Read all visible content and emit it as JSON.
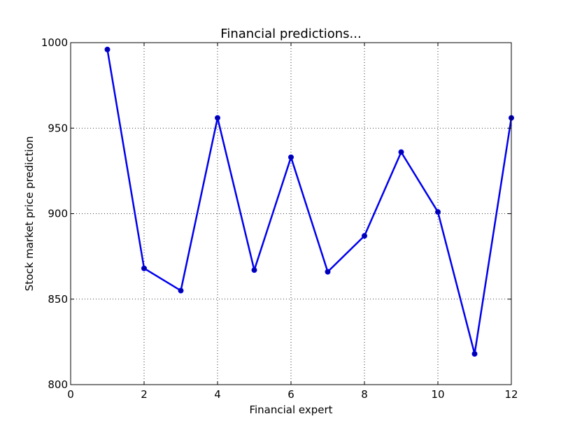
{
  "chart_data": {
    "type": "line",
    "title": "Financial predictions...",
    "xlabel": "Financial expert",
    "ylabel": "Stock market price prediction",
    "xlim": [
      0,
      12
    ],
    "ylim": [
      800,
      1000
    ],
    "x_ticks": [
      0,
      2,
      4,
      6,
      8,
      10,
      12
    ],
    "y_ticks": [
      800,
      850,
      900,
      950,
      1000
    ],
    "grid": true,
    "series": [
      {
        "x": [
          1,
          2,
          3,
          4,
          5,
          6,
          7,
          8,
          9,
          10,
          11,
          12
        ],
        "values": [
          996,
          868,
          855,
          956,
          867,
          933,
          866,
          887,
          936,
          901,
          818,
          956
        ],
        "color": "#0000ee",
        "marker": "circle"
      }
    ]
  }
}
